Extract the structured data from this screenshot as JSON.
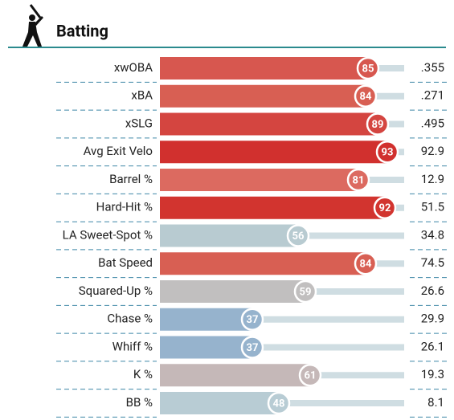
{
  "chart_data": {
    "type": "bar",
    "title": "Batting",
    "categories": [
      "xwOBA",
      "xBA",
      "xSLG",
      "Avg Exit Velo",
      "Barrel %",
      "Hard-Hit %",
      "LA Sweet-Spot %",
      "Bat Speed",
      "Squared-Up %",
      "Chase %",
      "Whiff %",
      "K %",
      "BB %"
    ],
    "values": [
      85,
      84,
      89,
      93,
      81,
      92,
      56,
      84,
      59,
      37,
      37,
      61,
      48
    ],
    "colors": [
      "#d7574f",
      "#d85f53",
      "#d44540",
      "#d1302e",
      "#dc6a60",
      "#d2342f",
      "#b8cbd1",
      "#d85f53",
      "#c1bfbf",
      "#96b3cd",
      "#96b3cd",
      "#c5b8b8",
      "#b8ccd4"
    ],
    "stats": [
      ".355",
      ".271",
      ".495",
      "92.9",
      "12.9",
      "51.5",
      "34.8",
      "74.5",
      "26.6",
      "29.9",
      "26.1",
      "19.3",
      "8.1"
    ],
    "xlim": [
      0,
      100
    ]
  }
}
